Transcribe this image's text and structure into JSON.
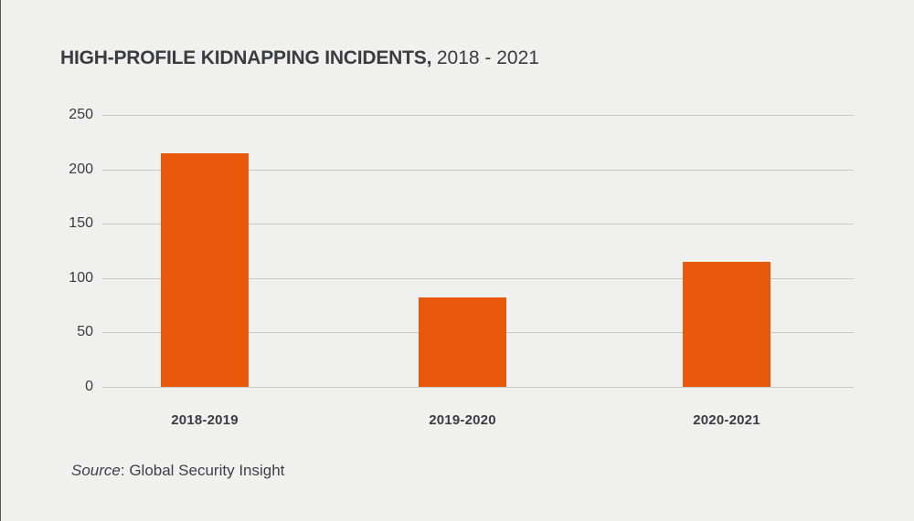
{
  "page": {
    "background_color": "#f0f0ee",
    "left_edge_color": "#4c604f",
    "text_color": "#3b3b42"
  },
  "title": {
    "bold": "HIGH-PROFILE KIDNAPPING INCIDENTS,",
    "period": "2018 - 2021"
  },
  "source": {
    "label": "Source",
    "text": ": Global Security Insight"
  },
  "chart_data": {
    "type": "bar",
    "title": "HIGH-PROFILE KIDNAPPING INCIDENTS, 2018 - 2021",
    "categories": [
      "2018-2019",
      "2019-2020",
      "2020-2021"
    ],
    "values": [
      215,
      82,
      115
    ],
    "yticks": [
      0,
      50,
      100,
      150,
      200,
      250
    ],
    "ylim": [
      0,
      250
    ],
    "xlabel": "",
    "ylabel": "",
    "grid": true,
    "legend": false,
    "bar_color": "#e8580d",
    "gridline_color": "#c8c8c6",
    "source_note": "Source: Global Security Insight"
  }
}
